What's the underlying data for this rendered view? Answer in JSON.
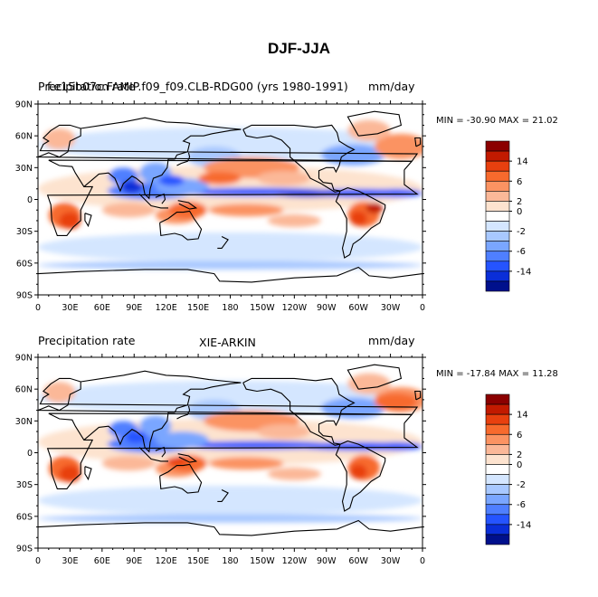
{
  "figure": {
    "title": "DJF-JJA"
  },
  "panels": [
    {
      "id": "model",
      "left_title": "Precipitation rate",
      "overlap_title": "f.e15b07c.FAMIP.f09_f09.CLB-RDG00 (yrs 1980-1991)",
      "right_title": "mm/day",
      "center_title": "",
      "stats": "MIN = -30.90  MAX =  21.02"
    },
    {
      "id": "obs",
      "left_title": "Precipitation rate",
      "overlap_title": "",
      "right_title": "mm/day",
      "center_title": "XIE-ARKIN",
      "stats": "MIN = -17.84  MAX =  11.28"
    }
  ],
  "axes": {
    "lat_labels": [
      "90N",
      "60N",
      "30N",
      "0",
      "30S",
      "60S",
      "90S"
    ],
    "lon_labels": [
      "0",
      "30E",
      "60E",
      "90E",
      "120E",
      "150E",
      "180",
      "150W",
      "120W",
      "90W",
      "60W",
      "30W",
      "0"
    ]
  },
  "colorbar": {
    "labels": [
      "14",
      "6",
      "2",
      "0",
      "-2",
      "-6",
      "-14"
    ],
    "colors": [
      "#8b0000",
      "#c21a00",
      "#e8400f",
      "#f76a2d",
      "#fb9362",
      "#fbb898",
      "#fde3cf",
      "#ffffff",
      "#d4e6ff",
      "#a8c8ff",
      "#7aa6ff",
      "#4f7fff",
      "#2554ff",
      "#0a2ed8",
      "#00108c"
    ]
  },
  "chart_data": {
    "type": "heatmap",
    "title": "DJF-JJA",
    "xlabel": "",
    "ylabel": "",
    "xlim": [
      0,
      360
    ],
    "ylim": [
      -90,
      90
    ],
    "x_ticks": [
      "0",
      "30E",
      "60E",
      "90E",
      "120E",
      "150E",
      "180",
      "150W",
      "120W",
      "90W",
      "60W",
      "30W",
      "0"
    ],
    "y_ticks": [
      "90N",
      "60N",
      "30N",
      "0",
      "30S",
      "60S",
      "90S"
    ],
    "units": "mm/day",
    "colorbar_levels": [
      14,
      6,
      2,
      0,
      -2,
      -6,
      -14
    ],
    "series": [
      {
        "name": "f.e15b07c.FAMIP.f09_f09.CLB-RDG00 (yrs 1980-1991)",
        "min": -30.9,
        "max": 21.02
      },
      {
        "name": "XIE-ARKIN",
        "min": -17.84,
        "max": 11.28
      }
    ]
  }
}
